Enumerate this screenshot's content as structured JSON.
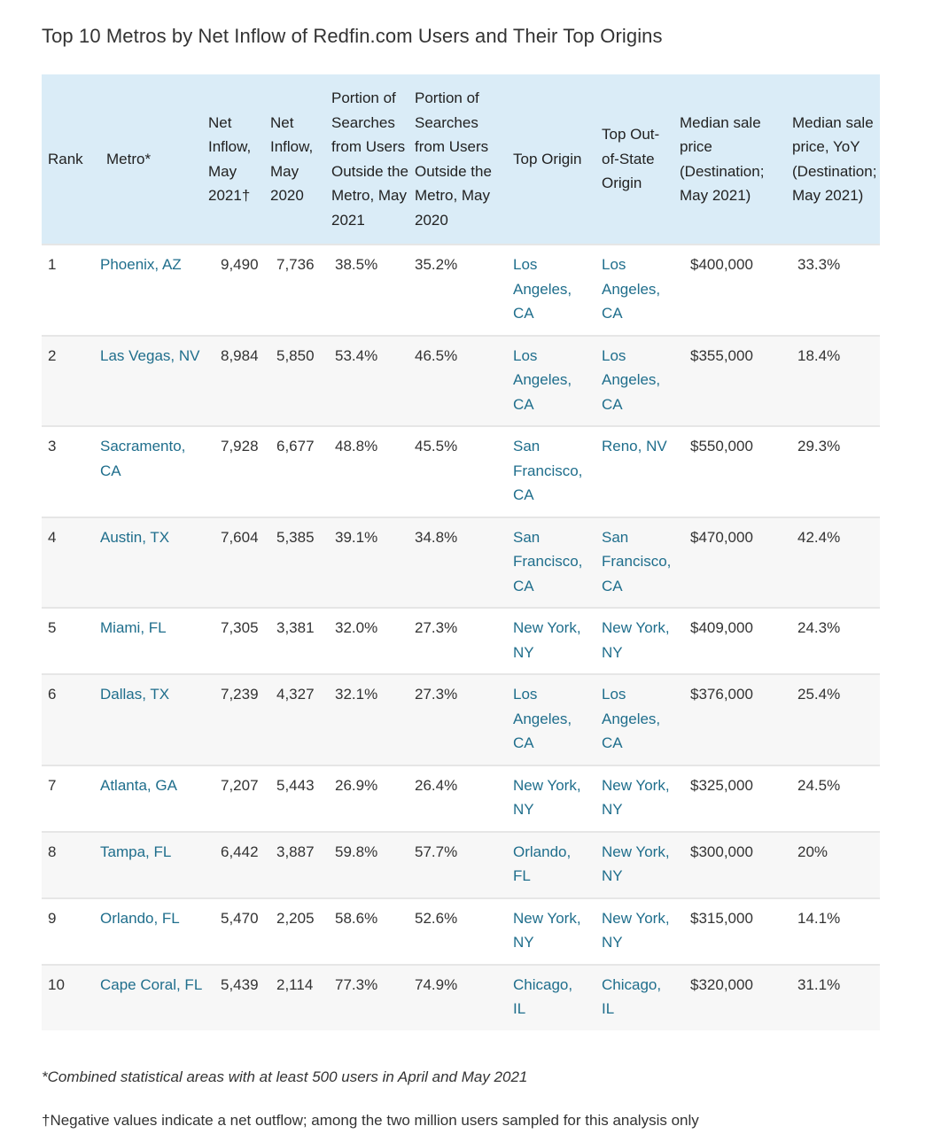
{
  "page": {
    "title": "Top 10 Metros by Net Inflow of Redfin.com Users and Their Top Origins"
  },
  "table": {
    "headers": {
      "rank": "Rank",
      "metro": "Metro*",
      "net_inflow_2021": "Net Inflow, May 2021†",
      "net_inflow_2020": "Net Inflow, May 2020",
      "portion_2021": "Portion of Searches from Users Outside the Metro, May 2021",
      "portion_2020": "Portion of Searches from Users Outside the Metro, May 2020",
      "top_origin": "Top Origin",
      "top_oos_origin": "Top Out-of-State Origin",
      "median_price": "Median sale price (Destination; May 2021)",
      "median_yoy": "Median sale price, YoY (Destination; May 2021)"
    },
    "rows": [
      {
        "rank": "1",
        "metro": "Phoenix, AZ",
        "inflow2021": "9,490",
        "inflow2020": "7,736",
        "portion2021": "38.5%",
        "portion2020": "35.2%",
        "origin": "Los Angeles, CA",
        "oos_origin": "Los Angeles, CA",
        "price": "$400,000",
        "yoy": "33.3%"
      },
      {
        "rank": "2",
        "metro": "Las Vegas, NV",
        "inflow2021": "8,984",
        "inflow2020": "5,850",
        "portion2021": "53.4%",
        "portion2020": "46.5%",
        "origin": "Los Angeles, CA",
        "oos_origin": "Los Angeles, CA",
        "price": "$355,000",
        "yoy": "18.4%"
      },
      {
        "rank": "3",
        "metro": "Sacramento, CA",
        "inflow2021": "7,928",
        "inflow2020": "6,677",
        "portion2021": "48.8%",
        "portion2020": "45.5%",
        "origin": "San Francisco, CA",
        "oos_origin": "Reno, NV",
        "price": "$550,000",
        "yoy": "29.3%"
      },
      {
        "rank": "4",
        "metro": "Austin, TX",
        "inflow2021": "7,604",
        "inflow2020": "5,385",
        "portion2021": "39.1%",
        "portion2020": "34.8%",
        "origin": "San Francisco, CA",
        "oos_origin": "San Francisco, CA",
        "price": "$470,000",
        "yoy": "42.4%"
      },
      {
        "rank": "5",
        "metro": "Miami, FL",
        "inflow2021": "7,305",
        "inflow2020": "3,381",
        "portion2021": "32.0%",
        "portion2020": "27.3%",
        "origin": "New York, NY",
        "oos_origin": "New York, NY",
        "price": "$409,000",
        "yoy": "24.3%"
      },
      {
        "rank": "6",
        "metro": "Dallas, TX",
        "inflow2021": "7,239",
        "inflow2020": "4,327",
        "portion2021": "32.1%",
        "portion2020": "27.3%",
        "origin": "Los Angeles, CA",
        "oos_origin": "Los Angeles, CA",
        "price": "$376,000",
        "yoy": "25.4%"
      },
      {
        "rank": "7",
        "metro": "Atlanta, GA",
        "inflow2021": "7,207",
        "inflow2020": "5,443",
        "portion2021": "26.9%",
        "portion2020": "26.4%",
        "origin": "New York, NY",
        "oos_origin": "New York, NY",
        "price": "$325,000",
        "yoy": "24.5%"
      },
      {
        "rank": "8",
        "metro": "Tampa, FL",
        "inflow2021": "6,442",
        "inflow2020": "3,887",
        "portion2021": "59.8%",
        "portion2020": "57.7%",
        "origin": "Orlando, FL",
        "oos_origin": "New York, NY",
        "price": "$300,000",
        "yoy": "20%"
      },
      {
        "rank": "9",
        "metro": "Orlando, FL",
        "inflow2021": "5,470",
        "inflow2020": "2,205",
        "portion2021": "58.6%",
        "portion2020": "52.6%",
        "origin": "New York, NY",
        "oos_origin": "New York, NY",
        "price": "$315,000",
        "yoy": "14.1%"
      },
      {
        "rank": "10",
        "metro": "Cape Coral, FL",
        "inflow2021": "5,439",
        "inflow2020": "2,114",
        "portion2021": "77.3%",
        "portion2020": "74.9%",
        "origin": "Chicago, IL",
        "oos_origin": "Chicago, IL",
        "price": "$320,000",
        "yoy": "31.1%"
      }
    ]
  },
  "footnotes": {
    "note1": "*Combined statistical areas with at least 500 users in April and May 2021",
    "note2": "†Negative values indicate a net outflow; among the two million users sampled for this analysis only"
  },
  "colors": {
    "header_bg": "#daecf7",
    "link": "#1f6e8c",
    "row_alt": "#f7f7f7",
    "text": "#333333"
  }
}
